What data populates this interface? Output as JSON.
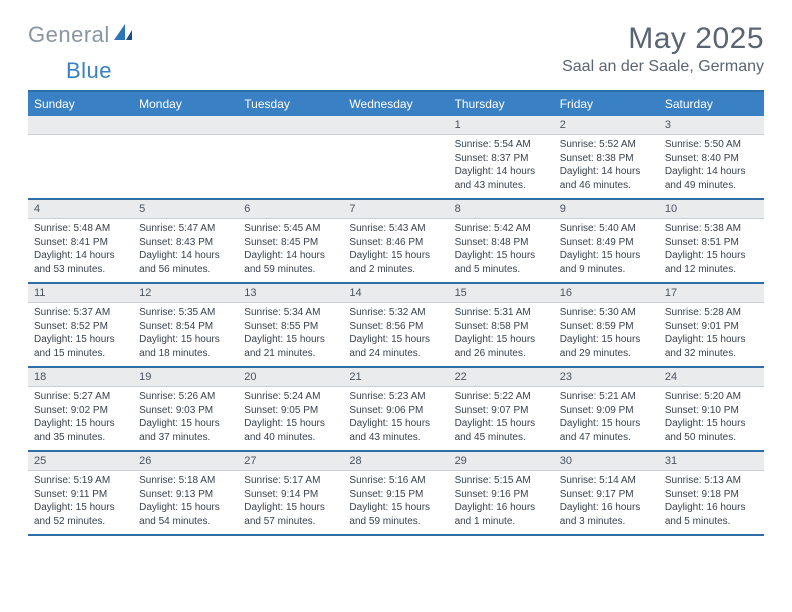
{
  "logo": {
    "word1": "General",
    "word2": "Blue"
  },
  "title": "May 2025",
  "location": "Saal an der Saale, Germany",
  "colors": {
    "header_bar": "#3a80c4",
    "row_divider": "#2f6fa8",
    "daynum_bg": "#e9ebec",
    "text_body": "#3a424c",
    "text_muted": "#5a6472"
  },
  "weekdays": [
    "Sunday",
    "Monday",
    "Tuesday",
    "Wednesday",
    "Thursday",
    "Friday",
    "Saturday"
  ],
  "weeks": [
    [
      null,
      null,
      null,
      null,
      {
        "n": "1",
        "sr": "5:54 AM",
        "ss": "8:37 PM",
        "dl": "14 hours and 43 minutes."
      },
      {
        "n": "2",
        "sr": "5:52 AM",
        "ss": "8:38 PM",
        "dl": "14 hours and 46 minutes."
      },
      {
        "n": "3",
        "sr": "5:50 AM",
        "ss": "8:40 PM",
        "dl": "14 hours and 49 minutes."
      }
    ],
    [
      {
        "n": "4",
        "sr": "5:48 AM",
        "ss": "8:41 PM",
        "dl": "14 hours and 53 minutes."
      },
      {
        "n": "5",
        "sr": "5:47 AM",
        "ss": "8:43 PM",
        "dl": "14 hours and 56 minutes."
      },
      {
        "n": "6",
        "sr": "5:45 AM",
        "ss": "8:45 PM",
        "dl": "14 hours and 59 minutes."
      },
      {
        "n": "7",
        "sr": "5:43 AM",
        "ss": "8:46 PM",
        "dl": "15 hours and 2 minutes."
      },
      {
        "n": "8",
        "sr": "5:42 AM",
        "ss": "8:48 PM",
        "dl": "15 hours and 5 minutes."
      },
      {
        "n": "9",
        "sr": "5:40 AM",
        "ss": "8:49 PM",
        "dl": "15 hours and 9 minutes."
      },
      {
        "n": "10",
        "sr": "5:38 AM",
        "ss": "8:51 PM",
        "dl": "15 hours and 12 minutes."
      }
    ],
    [
      {
        "n": "11",
        "sr": "5:37 AM",
        "ss": "8:52 PM",
        "dl": "15 hours and 15 minutes."
      },
      {
        "n": "12",
        "sr": "5:35 AM",
        "ss": "8:54 PM",
        "dl": "15 hours and 18 minutes."
      },
      {
        "n": "13",
        "sr": "5:34 AM",
        "ss": "8:55 PM",
        "dl": "15 hours and 21 minutes."
      },
      {
        "n": "14",
        "sr": "5:32 AM",
        "ss": "8:56 PM",
        "dl": "15 hours and 24 minutes."
      },
      {
        "n": "15",
        "sr": "5:31 AM",
        "ss": "8:58 PM",
        "dl": "15 hours and 26 minutes."
      },
      {
        "n": "16",
        "sr": "5:30 AM",
        "ss": "8:59 PM",
        "dl": "15 hours and 29 minutes."
      },
      {
        "n": "17",
        "sr": "5:28 AM",
        "ss": "9:01 PM",
        "dl": "15 hours and 32 minutes."
      }
    ],
    [
      {
        "n": "18",
        "sr": "5:27 AM",
        "ss": "9:02 PM",
        "dl": "15 hours and 35 minutes."
      },
      {
        "n": "19",
        "sr": "5:26 AM",
        "ss": "9:03 PM",
        "dl": "15 hours and 37 minutes."
      },
      {
        "n": "20",
        "sr": "5:24 AM",
        "ss": "9:05 PM",
        "dl": "15 hours and 40 minutes."
      },
      {
        "n": "21",
        "sr": "5:23 AM",
        "ss": "9:06 PM",
        "dl": "15 hours and 43 minutes."
      },
      {
        "n": "22",
        "sr": "5:22 AM",
        "ss": "9:07 PM",
        "dl": "15 hours and 45 minutes."
      },
      {
        "n": "23",
        "sr": "5:21 AM",
        "ss": "9:09 PM",
        "dl": "15 hours and 47 minutes."
      },
      {
        "n": "24",
        "sr": "5:20 AM",
        "ss": "9:10 PM",
        "dl": "15 hours and 50 minutes."
      }
    ],
    [
      {
        "n": "25",
        "sr": "5:19 AM",
        "ss": "9:11 PM",
        "dl": "15 hours and 52 minutes."
      },
      {
        "n": "26",
        "sr": "5:18 AM",
        "ss": "9:13 PM",
        "dl": "15 hours and 54 minutes."
      },
      {
        "n": "27",
        "sr": "5:17 AM",
        "ss": "9:14 PM",
        "dl": "15 hours and 57 minutes."
      },
      {
        "n": "28",
        "sr": "5:16 AM",
        "ss": "9:15 PM",
        "dl": "15 hours and 59 minutes."
      },
      {
        "n": "29",
        "sr": "5:15 AM",
        "ss": "9:16 PM",
        "dl": "16 hours and 1 minute."
      },
      {
        "n": "30",
        "sr": "5:14 AM",
        "ss": "9:17 PM",
        "dl": "16 hours and 3 minutes."
      },
      {
        "n": "31",
        "sr": "5:13 AM",
        "ss": "9:18 PM",
        "dl": "16 hours and 5 minutes."
      }
    ]
  ],
  "labels": {
    "sunrise": "Sunrise: ",
    "sunset": "Sunset: ",
    "daylight": "Daylight: "
  }
}
